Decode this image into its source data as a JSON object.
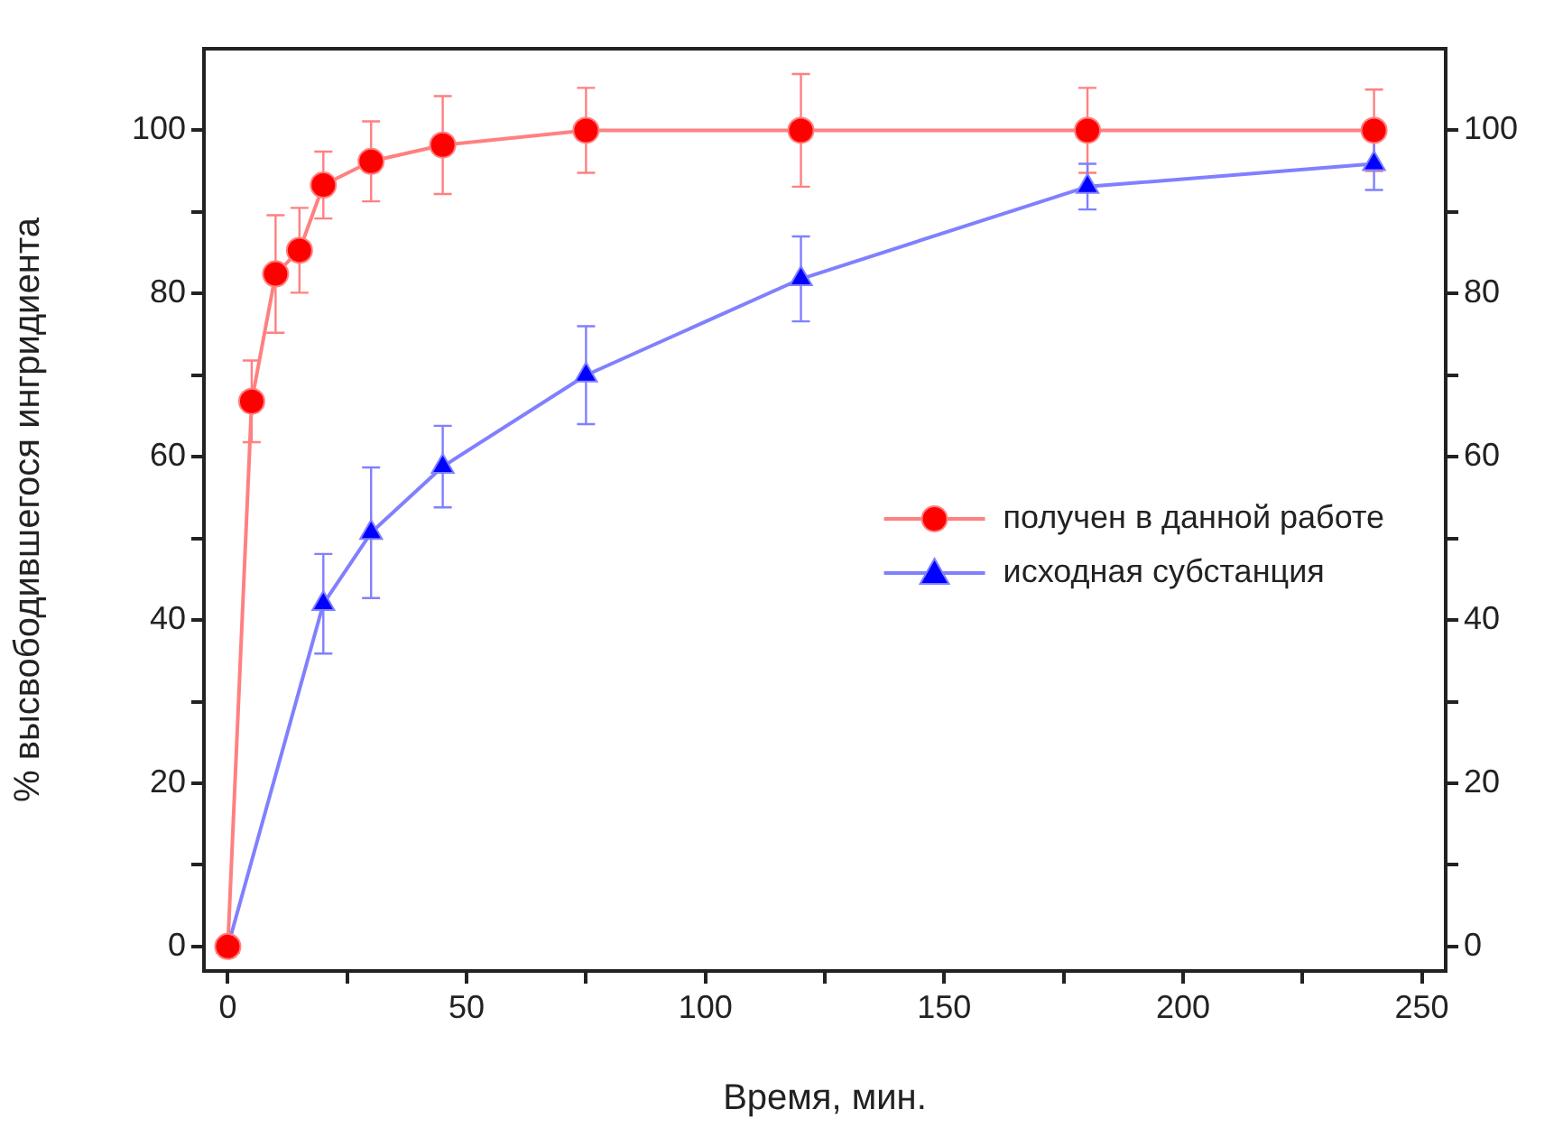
{
  "chart_data": {
    "type": "line",
    "xlabel": "Время, мин.",
    "ylabel": "% высвободившегося ингридиента",
    "x": [
      0,
      5,
      10,
      15,
      20,
      30,
      45,
      75,
      120,
      180,
      240
    ],
    "series": [
      {
        "name": "получен в данной работе",
        "color": "#ff0000",
        "marker": "circle",
        "values": [
          0,
          66.8,
          82.4,
          85.3,
          93.3,
          96.2,
          98.2,
          100,
          100,
          100,
          100
        ],
        "errors": [
          null,
          5,
          7.2,
          5.2,
          4.1,
          4.9,
          6,
          5.2,
          6.9,
          5.2,
          5
        ]
      },
      {
        "name": "исходная субстанция",
        "color": "#0000ff",
        "marker": "triangle",
        "x": [
          0,
          20,
          30,
          45,
          75,
          120,
          180,
          240
        ],
        "values": [
          0,
          42,
          50.7,
          58.8,
          70,
          81.8,
          93.1,
          95.9
        ],
        "errors": [
          null,
          6.1,
          8,
          5,
          6,
          5.2,
          2.8,
          3.2
        ]
      }
    ],
    "xlim": [
      -5,
      255
    ],
    "xticks": [
      0,
      {
        "value": 25,
        "label": null
      },
      50,
      {
        "value": 75,
        "label": null
      },
      100,
      {
        "value": 125,
        "label": null
      },
      150,
      {
        "value": 175,
        "label": null
      },
      200,
      {
        "value": 225,
        "label": null
      },
      250
    ],
    "ylim": [
      -3,
      110
    ],
    "yticks": [
      0,
      {
        "value": 10,
        "label": null
      },
      20,
      {
        "value": 30,
        "label": null
      },
      40,
      {
        "value": 50,
        "label": null
      },
      60,
      {
        "value": 70,
        "label": null
      },
      80,
      {
        "value": 90,
        "label": null
      },
      100
    ],
    "y2lim": [
      -3,
      110
    ],
    "y2ticks": [
      0,
      {
        "value": 10,
        "label": null
      },
      20,
      {
        "value": 30,
        "label": null
      },
      40,
      {
        "value": 50,
        "label": null
      },
      60,
      {
        "value": 70,
        "label": null
      },
      80,
      {
        "value": 90,
        "label": null
      },
      100
    ],
    "grid": false,
    "legend": "right"
  }
}
